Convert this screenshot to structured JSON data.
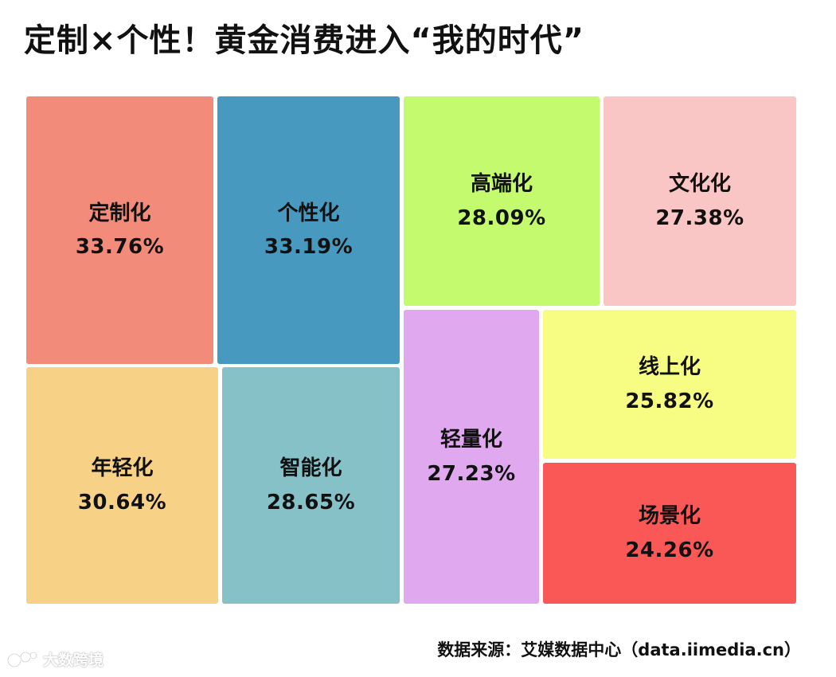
{
  "title": "定制×个性！黄金消费进入“我的时代”",
  "source": "数据来源：艾媒数据中心（data.iimedia.cn）",
  "watermark": "大数跨境",
  "chart_data": {
    "type": "treemap",
    "items": [
      {
        "name": "定制化",
        "value": 33.76,
        "label": "33.76%",
        "color": "#F28B7A"
      },
      {
        "name": "个性化",
        "value": 33.19,
        "label": "33.19%",
        "color": "#4799BF"
      },
      {
        "name": "高端化",
        "value": 28.09,
        "label": "28.09%",
        "color": "#C4FA6E"
      },
      {
        "name": "文化化",
        "value": 27.38,
        "label": "27.38%",
        "color": "#FAC5C5"
      },
      {
        "name": "年轻化",
        "value": 30.64,
        "label": "30.64%",
        "color": "#F7D286"
      },
      {
        "name": "智能化",
        "value": 28.65,
        "label": "28.65%",
        "color": "#86C1C7"
      },
      {
        "name": "轻量化",
        "value": 27.23,
        "label": "27.23%",
        "color": "#E0A8EE"
      },
      {
        "name": "线上化",
        "value": 25.82,
        "label": "25.82%",
        "color": "#F7FC82"
      },
      {
        "name": "场景化",
        "value": 24.26,
        "label": "24.26%",
        "color": "#FA5757"
      }
    ]
  }
}
